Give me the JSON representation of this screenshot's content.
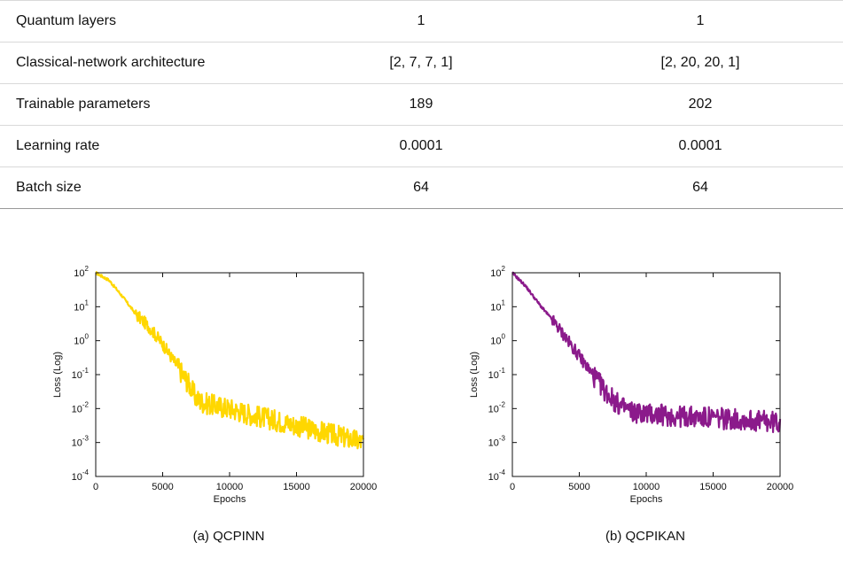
{
  "table": {
    "rows": [
      {
        "label": "Quantum layers",
        "a": "1",
        "b": "1"
      },
      {
        "label": "Classical-network architecture",
        "a": "[2, 7, 7, 1]",
        "b": "[2, 20, 20, 1]"
      },
      {
        "label": "Trainable parameters",
        "a": "189",
        "b": "202"
      },
      {
        "label": "Learning rate",
        "a": "0.0001",
        "b": "0.0001"
      },
      {
        "label": "Batch size",
        "a": "64",
        "b": "64"
      }
    ]
  },
  "captions": {
    "left": "(a) QCPINN",
    "right": "(b) QCPIKAN"
  },
  "chart_data": [
    {
      "type": "line",
      "title": "",
      "xlabel": "Epochs",
      "ylabel": "Loss (Log)",
      "xlim": [
        0,
        20000
      ],
      "ylim": [
        0.0001,
        100
      ],
      "yscale": "log",
      "xticks": [
        "0",
        "5000",
        "10000",
        "15000",
        "20000"
      ],
      "yticks": [
        "10^-4",
        "10^-3",
        "10^-2",
        "10^-1",
        "10^0",
        "10^1",
        "10^2"
      ],
      "grid": false,
      "color": "#FFD700",
      "series": [
        {
          "x": [
            0,
            1000,
            2000,
            3000,
            4000,
            5000,
            6000,
            7000,
            7500,
            8000,
            9000,
            10000,
            12000,
            14000,
            16000,
            18000,
            20000
          ],
          "y": [
            100,
            60,
            20,
            6,
            2.5,
            0.8,
            0.2,
            0.05,
            0.02,
            0.015,
            0.012,
            0.01,
            0.006,
            0.004,
            0.0025,
            0.0016,
            0.001
          ]
        }
      ]
    },
    {
      "type": "line",
      "title": "",
      "xlabel": "Epochs",
      "ylabel": "Loss (Log)",
      "xlim": [
        0,
        20000
      ],
      "ylim": [
        0.0001,
        100
      ],
      "yscale": "log",
      "xticks": [
        "0",
        "5000",
        "10000",
        "15000",
        "20000"
      ],
      "yticks": [
        "10^-4",
        "10^-3",
        "10^-2",
        "10^-1",
        "10^0",
        "10^1",
        "10^2"
      ],
      "grid": false,
      "color": "#8B1A8B",
      "series": [
        {
          "x": [
            0,
            1000,
            2000,
            3000,
            4000,
            5000,
            6000,
            7000,
            8000,
            9000,
            10000,
            12000,
            14000,
            16000,
            18000,
            20000
          ],
          "y": [
            100,
            40,
            12,
            4,
            1.2,
            0.35,
            0.1,
            0.03,
            0.012,
            0.008,
            0.007,
            0.006,
            0.0055,
            0.005,
            0.0045,
            0.0038
          ]
        }
      ]
    }
  ]
}
